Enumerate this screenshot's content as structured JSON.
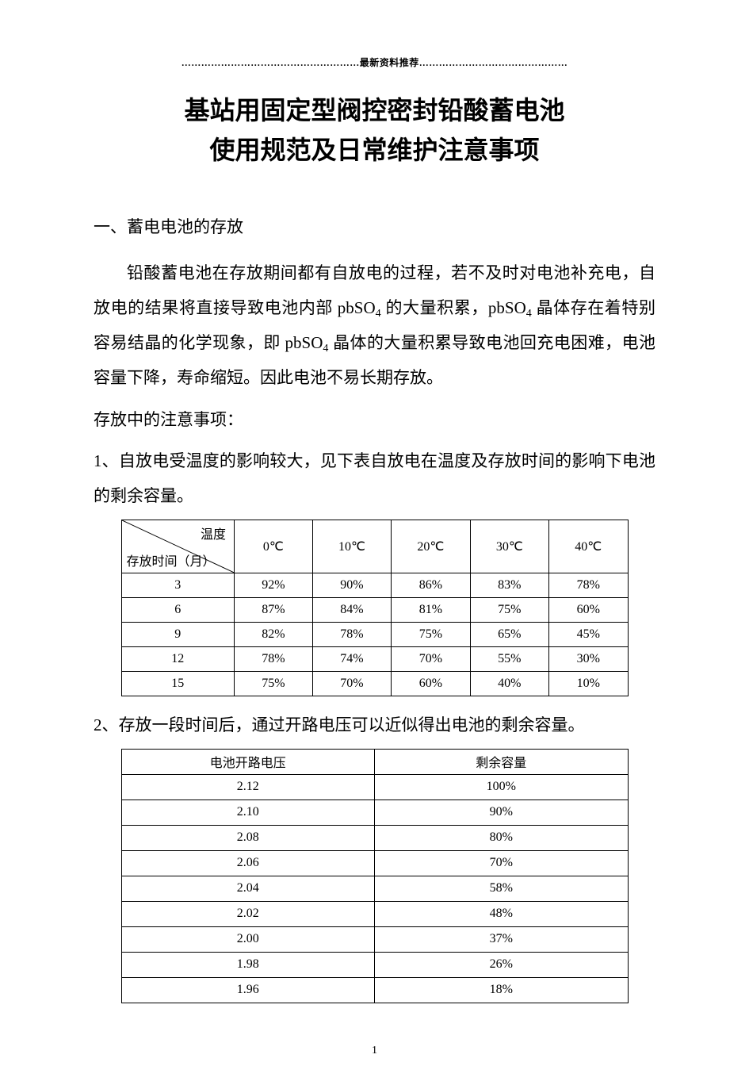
{
  "header_decoration": "………………………………………………最新资料推荐………………………………………",
  "title_line1": "基站用固定型阀控密封铅酸蓄电池",
  "title_line2": "使用规范及日常维护注意事项",
  "section1_heading": "一、蓄电电池的存放",
  "para1_pre": "铅酸蓄电池在存放期间都有自放电的过程，若不及时对电池补充电，自放电的结果将直接导致电池内部 pbSO",
  "para1_sub1": "4",
  "para1_mid": " 的大量积累，pbSO",
  "para1_sub2": "4",
  "para1_mid2": " 晶体存在着特别容易结晶的化学现象，即 pbSO",
  "para1_sub3": "4",
  "para1_post": " 晶体的大量积累导致电池回充电困难，电池容量下降，寿命缩短。因此电池不易长期存放。",
  "para2": "存放中的注意事项：",
  "item1_text": "1、自放电受温度的影响较大，见下表自放电在温度及存放时间的影响下电池的剩余容量。",
  "table1": {
    "diag_top_label": "温度",
    "diag_bottom_label": "存放时间（月）",
    "columns": [
      "0℃",
      "10℃",
      "20℃",
      "30℃",
      "40℃"
    ],
    "rows": [
      {
        "label": "3",
        "values": [
          "92%",
          "90%",
          "86%",
          "83%",
          "78%"
        ]
      },
      {
        "label": "6",
        "values": [
          "87%",
          "84%",
          "81%",
          "75%",
          "60%"
        ]
      },
      {
        "label": "9",
        "values": [
          "82%",
          "78%",
          "75%",
          "65%",
          "45%"
        ]
      },
      {
        "label": "12",
        "values": [
          "78%",
          "74%",
          "70%",
          "55%",
          "30%"
        ]
      },
      {
        "label": "15",
        "values": [
          "75%",
          "70%",
          "60%",
          "40%",
          "10%"
        ]
      }
    ],
    "border_color": "#000000",
    "font_size": 16
  },
  "item2_text": "2、存放一段时间后，通过开路电压可以近似得出电池的剩余容量。",
  "table2": {
    "columns": [
      "电池开路电压",
      "剩余容量"
    ],
    "rows": [
      [
        "2.12",
        "100%"
      ],
      [
        "2.10",
        "90%"
      ],
      [
        "2.08",
        "80%"
      ],
      [
        "2.06",
        "70%"
      ],
      [
        "2.04",
        "58%"
      ],
      [
        "2.02",
        "48%"
      ],
      [
        "2.00",
        "37%"
      ],
      [
        "1.98",
        "26%"
      ],
      [
        "1.96",
        "18%"
      ]
    ],
    "border_color": "#000000",
    "font_size": 16
  },
  "page_number": "1",
  "colors": {
    "text": "#000000",
    "background": "#ffffff",
    "border": "#000000"
  },
  "typography": {
    "title_fontsize": 32,
    "body_fontsize": 21,
    "table_fontsize": 16,
    "header_deco_fontsize": 12,
    "font_family": "SimSun"
  }
}
